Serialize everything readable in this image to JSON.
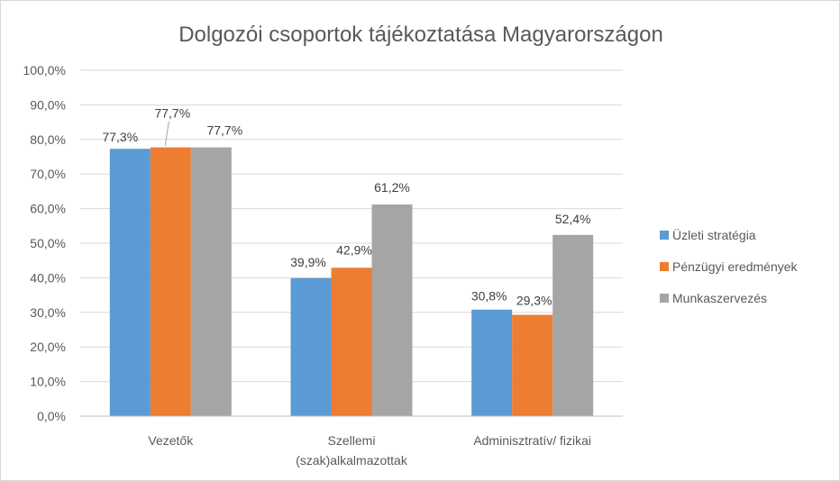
{
  "chart_data": {
    "type": "bar",
    "title": "Dolgozói csoportok tájékoztatása Magyarországon",
    "xlabel": "",
    "ylabel": "",
    "categories": [
      [
        "Vezetők"
      ],
      [
        "Szellemi",
        "(szak)alkalmazottak"
      ],
      [
        "Adminisztratív/ fizikai"
      ]
    ],
    "series": [
      {
        "name": "Üzleti stratégia",
        "values": [
          77.3,
          39.9,
          30.8
        ],
        "labels": [
          "77,3%",
          "39,9%",
          "30,8%"
        ],
        "color": "#5b9bd5"
      },
      {
        "name": "Pénzügyi eredmények",
        "values": [
          77.7,
          42.9,
          29.3
        ],
        "labels": [
          "77,7%",
          "42,9%",
          "29,3%"
        ],
        "color": "#ed7d31"
      },
      {
        "name": "Munkaszervezés",
        "values": [
          77.7,
          61.2,
          52.4
        ],
        "labels": [
          "77,7%",
          "61,2%",
          "52,4%"
        ],
        "color": "#a5a5a5"
      }
    ],
    "ylim": [
      0,
      100
    ],
    "yticks": [
      "0,0%",
      "10,0%",
      "20,0%",
      "30,0%",
      "40,0%",
      "50,0%",
      "60,0%",
      "70,0%",
      "80,0%",
      "90,0%",
      "100,0%"
    ],
    "grid": true,
    "legend": "right"
  }
}
